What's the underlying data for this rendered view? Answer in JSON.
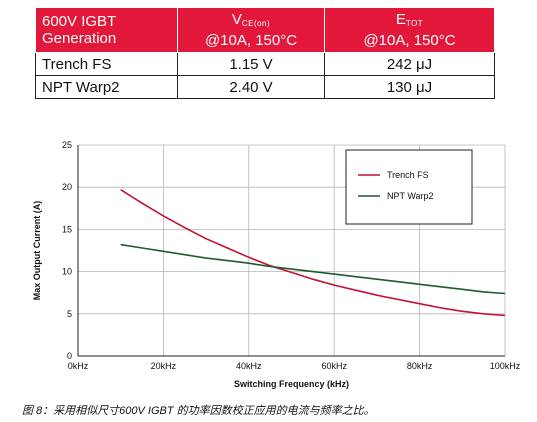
{
  "table": {
    "header": {
      "col1_line1": "600V IGBT",
      "col1_line2": "Generation",
      "col2_main": "V",
      "col2_sub": "CE(on)",
      "col2_cond": "@10A, 150°C",
      "col3_main": "E",
      "col3_sub": "TOT",
      "col3_cond": "@10A, 150°C"
    },
    "rows": [
      {
        "name": "Trench FS",
        "vce": "1.15 V",
        "etot": "242 μJ"
      },
      {
        "name": "NPT Warp2",
        "vce": "2.40 V",
        "etot": "130 μJ"
      }
    ],
    "header_color": "#e3173a"
  },
  "chart_data": {
    "type": "line",
    "xlabel": "Switching Frequency (kHz)",
    "ylabel": "Max Output Current (A)",
    "xlim": [
      0,
      100
    ],
    "ylim": [
      0,
      25
    ],
    "xticks": [
      0,
      20,
      40,
      60,
      80,
      100
    ],
    "xtick_labels": [
      "0kHz",
      "20kHz",
      "40kHz",
      "60kHz",
      "80kHz",
      "100kHz"
    ],
    "yticks": [
      0,
      5,
      10,
      15,
      20,
      25
    ],
    "ytick_labels": [
      "0",
      "5",
      "10",
      "15",
      "20",
      "25"
    ],
    "grid": true,
    "legend_position": "top-right",
    "series": [
      {
        "name": "Trench FS",
        "color": "#c41230",
        "x": [
          10,
          15,
          20,
          25,
          30,
          35,
          40,
          45,
          50,
          55,
          60,
          65,
          70,
          75,
          80,
          85,
          90,
          95,
          100
        ],
        "y": [
          19.7,
          18.1,
          16.6,
          15.2,
          13.9,
          12.8,
          11.7,
          10.7,
          9.9,
          9.1,
          8.4,
          7.8,
          7.2,
          6.7,
          6.2,
          5.7,
          5.3,
          5.0,
          4.8
        ]
      },
      {
        "name": "NPT Warp2",
        "color": "#1e5a32",
        "x": [
          10,
          15,
          20,
          25,
          30,
          35,
          40,
          45,
          50,
          55,
          60,
          65,
          70,
          75,
          80,
          85,
          90,
          95,
          100
        ],
        "y": [
          13.2,
          12.8,
          12.4,
          12.0,
          11.6,
          11.3,
          11.0,
          10.6,
          10.3,
          10.0,
          9.7,
          9.4,
          9.1,
          8.8,
          8.5,
          8.2,
          7.9,
          7.6,
          7.4
        ]
      }
    ]
  },
  "caption": "图 8：采用相似尺寸600V IGBT 的功率因数校正应用的电流与频率之比。"
}
